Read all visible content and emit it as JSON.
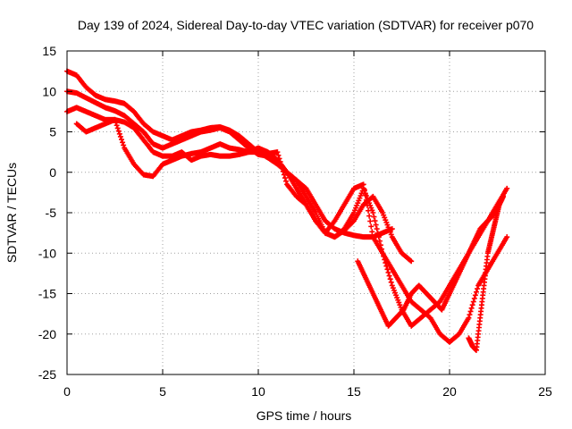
{
  "chart_data": {
    "type": "scatter",
    "title": "Day 139 of 2024, Sidereal Day-to-day VTEC variation (SDTVAR) for receiver p070",
    "xlabel": "GPS time / hours",
    "ylabel": "SDTVAR / TECUs",
    "xlim": [
      0,
      25
    ],
    "ylim": [
      -25,
      15
    ],
    "xticks": [
      0,
      5,
      10,
      15,
      20,
      25
    ],
    "yticks": [
      15,
      10,
      5,
      0,
      -5,
      -10,
      -15,
      -20,
      -25
    ],
    "grid": true,
    "marker": "plus",
    "color": "#ff0000",
    "series": [
      {
        "name": "track-1",
        "x": [
          0,
          0.5,
          1,
          1.5,
          2,
          2.5,
          3,
          3.5,
          4,
          4.5,
          5,
          5.5,
          6,
          6.5,
          7,
          7.5,
          8,
          8.5,
          9,
          9.5,
          10,
          10.5,
          11,
          11.5,
          12,
          12.5,
          13,
          13.5,
          14,
          14.5,
          15,
          15.5,
          16,
          16.5,
          17
        ],
        "y": [
          12.5,
          12,
          10.5,
          9.5,
          9,
          8.8,
          8.5,
          7.5,
          6,
          5,
          4.5,
          4,
          4.5,
          5,
          5.2,
          5.5,
          5.6,
          5.2,
          4.5,
          3.5,
          2.5,
          1.8,
          1,
          0,
          -1,
          -2,
          -4,
          -6,
          -7,
          -7.5,
          -7.8,
          -8,
          -8,
          -7.5,
          -7
        ]
      },
      {
        "name": "track-2",
        "x": [
          0,
          0.5,
          1,
          1.5,
          2,
          2.5,
          3,
          3.5,
          4,
          4.5,
          5,
          5.5,
          6,
          6.5,
          7,
          7.5,
          8,
          8.5,
          9,
          9.5,
          10,
          10.5,
          11,
          11.5,
          12,
          12.5,
          13,
          13.5,
          14,
          14.5,
          15,
          15.5,
          16,
          16.5,
          17,
          17.5,
          18
        ],
        "y": [
          10,
          9.8,
          9.2,
          8.6,
          8,
          7.6,
          7,
          6,
          5,
          3.5,
          3,
          3.5,
          4,
          4.5,
          5,
          5.2,
          5.5,
          5,
          4,
          3,
          2.2,
          2,
          1.5,
          0,
          -2,
          -4,
          -6,
          -7.5,
          -8,
          -7.2,
          -6,
          -4,
          -3,
          -5,
          -8,
          -10,
          -11
        ]
      },
      {
        "name": "track-3",
        "x": [
          0,
          0.5,
          1,
          1.5,
          2,
          2.5,
          3,
          3.5,
          4,
          4.5,
          5,
          5.5,
          6,
          6.5,
          7,
          7.5,
          8,
          8.5,
          9,
          9.5,
          10,
          10.5,
          11,
          11.5,
          12,
          12.5,
          13,
          13.5,
          14,
          14.5,
          15,
          15.5,
          16,
          16.5,
          17,
          17.5,
          18,
          18.5,
          19,
          19.5,
          20,
          20.5,
          21,
          21.5,
          22,
          22.5,
          23
        ],
        "y": [
          7.5,
          8,
          7.5,
          7,
          6.5,
          6.5,
          6.2,
          5.5,
          4,
          2.5,
          2,
          2,
          2.5,
          1.5,
          2,
          2.2,
          2,
          2,
          2.2,
          2.5,
          3,
          2.5,
          1.5,
          0,
          -1,
          -3,
          -5,
          -7.5,
          -6,
          -4,
          -2,
          -1.5,
          -8,
          -10,
          -12,
          -14,
          -16,
          -17,
          -18,
          -20,
          -21,
          -20,
          -18,
          -14,
          -12,
          -10,
          -8
        ]
      },
      {
        "name": "track-4",
        "x": [
          0.5,
          1,
          1.5,
          2,
          2.5,
          3,
          3.5,
          4,
          4.5,
          5,
          5.5,
          6,
          6.5,
          7,
          7.5,
          8,
          8.5,
          9,
          9.5,
          10,
          10.5,
          11,
          11.5,
          12,
          12.5,
          13,
          13.5,
          14,
          14.5,
          15,
          15.5,
          16,
          16.5,
          17,
          17.5,
          18,
          18.5,
          19,
          19.5,
          20,
          20.5,
          21,
          21.5,
          22,
          22.5,
          23
        ],
        "y": [
          6,
          5,
          5.5,
          6,
          6.5,
          3,
          1,
          -0.3,
          -0.5,
          1,
          1.5,
          2,
          2.3,
          2.5,
          3,
          3.5,
          3,
          2.8,
          2.5,
          2.5,
          2.3,
          2.5,
          -1.5,
          -3,
          -4,
          -6,
          -7.5,
          -8,
          -7,
          -5,
          -2,
          -5,
          -10,
          -14,
          -17,
          -19,
          -18,
          -17,
          -16,
          -14,
          -12,
          -10,
          -8,
          -6,
          -4,
          -2
        ]
      },
      {
        "name": "track-5",
        "x": [
          15.2,
          15.6,
          16,
          16.4,
          16.8,
          17.2,
          17.6,
          18,
          18.4,
          18.8,
          19.2,
          19.6,
          20,
          20.4,
          20.8,
          21.2,
          21.6,
          22,
          22.4,
          22.8
        ],
        "y": [
          -11,
          -13,
          -15,
          -17,
          -19,
          -18,
          -17,
          -15,
          -14,
          -15,
          -16,
          -17,
          -15,
          -13,
          -11,
          -9,
          -7,
          -6,
          -5,
          -3
        ]
      },
      {
        "name": "track-6",
        "x": [
          21,
          21.2,
          21.4,
          21.6,
          21.8,
          22,
          22.2,
          22.4,
          22.6,
          22.8
        ],
        "y": [
          -20.5,
          -21.5,
          -22,
          -18,
          -14,
          -10,
          -8,
          -6,
          -4,
          -3
        ]
      }
    ]
  }
}
